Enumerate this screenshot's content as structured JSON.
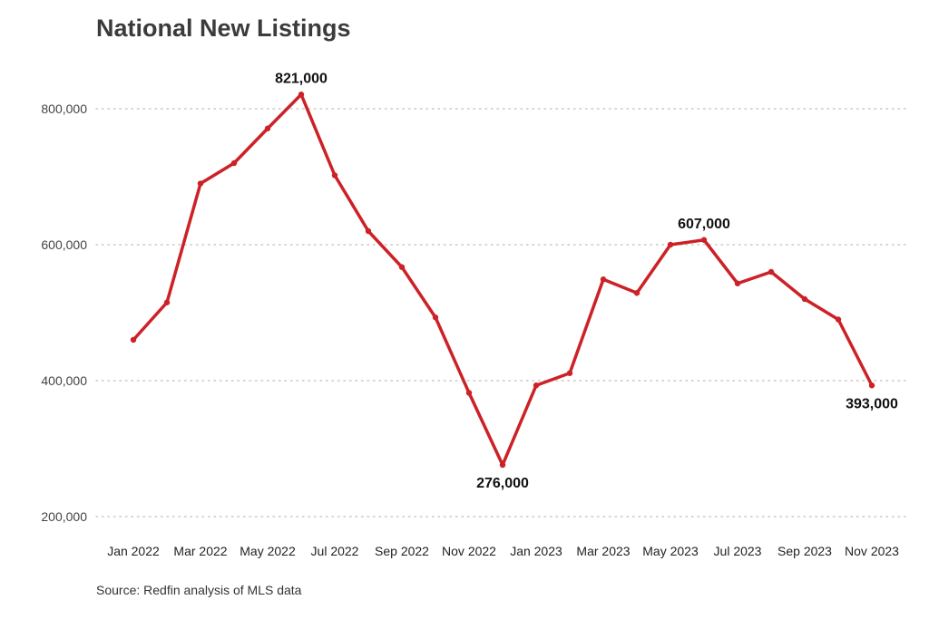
{
  "chart_data": {
    "type": "line",
    "title": "National New Listings",
    "source": "Source: Redfin analysis of MLS data",
    "color": "#cc2127",
    "ylim": [
      200000,
      821000
    ],
    "yticks": [
      {
        "value": 200000,
        "label": "200,000"
      },
      {
        "value": 400000,
        "label": "400,000"
      },
      {
        "value": 600000,
        "label": "600,000"
      },
      {
        "value": 800000,
        "label": "800,000"
      }
    ],
    "grid": true,
    "x": [
      "Jan 2022",
      "Feb 2022",
      "Mar 2022",
      "Apr 2022",
      "May 2022",
      "Jun 2022",
      "Jul 2022",
      "Aug 2022",
      "Sep 2022",
      "Oct 2022",
      "Nov 2022",
      "Dec 2022",
      "Jan 2023",
      "Feb 2023",
      "Mar 2023",
      "Apr 2023",
      "May 2023",
      "Jun 2023",
      "Jul 2023",
      "Aug 2023",
      "Sep 2023",
      "Oct 2023",
      "Nov 2023"
    ],
    "xtick_labels": [
      {
        "index": 0,
        "label": "Jan 2022"
      },
      {
        "index": 2,
        "label": "Mar 2022"
      },
      {
        "index": 4,
        "label": "May 2022"
      },
      {
        "index": 6,
        "label": "Jul 2022"
      },
      {
        "index": 8,
        "label": "Sep 2022"
      },
      {
        "index": 10,
        "label": "Nov 2022"
      },
      {
        "index": 12,
        "label": "Jan 2023"
      },
      {
        "index": 14,
        "label": "Mar 2023"
      },
      {
        "index": 16,
        "label": "May 2023"
      },
      {
        "index": 18,
        "label": "Jul 2023"
      },
      {
        "index": 20,
        "label": "Sep 2023"
      },
      {
        "index": 22,
        "label": "Nov 2023"
      }
    ],
    "series": [
      {
        "values": [
          460000,
          515000,
          690000,
          720000,
          771000,
          821000,
          702000,
          620000,
          567000,
          493000,
          382000,
          276000,
          393000,
          411000,
          549000,
          529000,
          600000,
          607000,
          543000,
          560000,
          520000,
          490000,
          393000
        ]
      }
    ],
    "annotations": [
      {
        "index": 5,
        "label": "821,000",
        "position": "above"
      },
      {
        "index": 11,
        "label": "276,000",
        "position": "below"
      },
      {
        "index": 17,
        "label": "607,000",
        "position": "above"
      },
      {
        "index": 22,
        "label": "393,000",
        "position": "below"
      }
    ]
  }
}
